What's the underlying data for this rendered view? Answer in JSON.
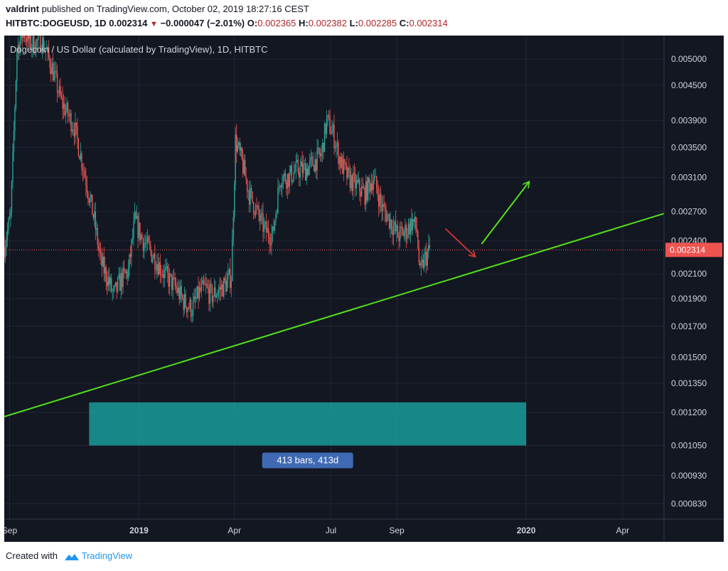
{
  "header": {
    "author": "valdrint",
    "published_text": "published on TradingView.com, October 02, 2019 18:27:16 CEST",
    "symbol": "HITBTC:DOGEUSD, 1D",
    "price": "0.002314",
    "change_arrow": "▼",
    "change": "−0.000047 (−2.01%)",
    "open_label": "O:",
    "open": "0.002365",
    "high_label": "H:",
    "high": "0.002382",
    "low_label": "L:",
    "low": "0.002285",
    "close_label": "C:",
    "close": "0.002314"
  },
  "chart_data": {
    "type": "candlestick",
    "title": "Dogecoin / US Dollar (calculated by TradingView), 1D, HITBTC",
    "y_scale": "log",
    "ylim": [
      0.00078,
      0.0055
    ],
    "y_ticks": [
      "0.005000",
      "0.004500",
      "0.003900",
      "0.003500",
      "0.003100",
      "0.002700",
      "0.002400",
      "0.002100",
      "0.001900",
      "0.001700",
      "0.001500",
      "0.001350",
      "0.001200",
      "0.001050",
      "0.000930",
      "0.000830"
    ],
    "x_ticks": [
      {
        "label": "Sep",
        "date": "2018-09-01",
        "bold": false
      },
      {
        "label": "2019",
        "date": "2019-01-01",
        "bold": true
      },
      {
        "label": "Apr",
        "date": "2019-04-01",
        "bold": false
      },
      {
        "label": "Jul",
        "date": "2019-07-01",
        "bold": false
      },
      {
        "label": "Sep",
        "date": "2019-09-01",
        "bold": false
      },
      {
        "label": "2020",
        "date": "2020-01-01",
        "bold": true
      },
      {
        "label": "Apr",
        "date": "2020-04-01",
        "bold": false
      }
    ],
    "xlim": [
      "2018-08-27",
      "2020-05-10"
    ],
    "price_path": [
      [
        "2018-08-27",
        0.00235
      ],
      [
        "2018-09-02",
        0.00265
      ],
      [
        "2018-09-08",
        0.0052
      ],
      [
        "2018-09-14",
        0.0056
      ],
      [
        "2018-09-22",
        0.0053
      ],
      [
        "2018-10-01",
        0.0054
      ],
      [
        "2018-10-10",
        0.0049
      ],
      [
        "2018-10-20",
        0.0042
      ],
      [
        "2018-11-01",
        0.0038
      ],
      [
        "2018-11-10",
        0.0032
      ],
      [
        "2018-11-20",
        0.0026
      ],
      [
        "2018-11-26",
        0.0022
      ],
      [
        "2018-12-03",
        0.00205
      ],
      [
        "2018-12-08",
        0.00192
      ],
      [
        "2018-12-15",
        0.00205
      ],
      [
        "2018-12-22",
        0.00212
      ],
      [
        "2018-12-28",
        0.0026
      ],
      [
        "2019-01-05",
        0.0024
      ],
      [
        "2019-01-15",
        0.00225
      ],
      [
        "2019-01-25",
        0.0021
      ],
      [
        "2019-02-05",
        0.00198
      ],
      [
        "2019-02-12",
        0.00188
      ],
      [
        "2019-02-20",
        0.00182
      ],
      [
        "2019-02-27",
        0.00195
      ],
      [
        "2019-03-05",
        0.00198
      ],
      [
        "2019-03-10",
        0.00192
      ],
      [
        "2019-03-18",
        0.00197
      ],
      [
        "2019-03-24",
        0.00202
      ],
      [
        "2019-03-29",
        0.00208
      ],
      [
        "2019-04-02",
        0.0036
      ],
      [
        "2019-04-08",
        0.0033
      ],
      [
        "2019-04-15",
        0.0029
      ],
      [
        "2019-04-22",
        0.0027
      ],
      [
        "2019-04-30",
        0.0025
      ],
      [
        "2019-05-07",
        0.00245
      ],
      [
        "2019-05-14",
        0.0031
      ],
      [
        "2019-05-22",
        0.0031
      ],
      [
        "2019-05-30",
        0.0032
      ],
      [
        "2019-06-07",
        0.0032
      ],
      [
        "2019-06-15",
        0.0033
      ],
      [
        "2019-06-22",
        0.0034
      ],
      [
        "2019-06-27",
        0.0039
      ],
      [
        "2019-07-03",
        0.0037
      ],
      [
        "2019-07-10",
        0.0033
      ],
      [
        "2019-07-17",
        0.0031
      ],
      [
        "2019-07-25",
        0.003
      ],
      [
        "2019-08-02",
        0.0029
      ],
      [
        "2019-08-10",
        0.0031
      ],
      [
        "2019-08-18",
        0.00275
      ],
      [
        "2019-08-26",
        0.0026
      ],
      [
        "2019-09-02",
        0.00245
      ],
      [
        "2019-09-10",
        0.0025
      ],
      [
        "2019-09-16",
        0.0026
      ],
      [
        "2019-09-20",
        0.0025
      ],
      [
        "2019-09-23",
        0.00208
      ],
      [
        "2019-09-26",
        0.0022
      ],
      [
        "2019-10-02",
        0.002314
      ]
    ],
    "current_price": {
      "label": "0.002314",
      "value": 0.002314
    },
    "trendline": {
      "start": [
        "2018-08-27",
        0.00118
      ],
      "end": [
        "2020-05-10",
        0.00268
      ],
      "color": "#54e01a"
    },
    "date_range_box": {
      "start": "2018-11-15",
      "end": "2020-01-01",
      "top": 0.00125,
      "bottom": 0.00105,
      "label": "413 bars, 413d",
      "color": "#1bb3b0"
    },
    "red_arrow": {
      "from": [
        "2019-10-17",
        0.00252
      ],
      "to": [
        "2019-11-14",
        0.00225
      ],
      "color": "#e53935"
    },
    "green_arrow": {
      "from": [
        "2019-11-20",
        0.00237
      ],
      "to": [
        "2020-01-04",
        0.00305
      ],
      "color": "#54e01a"
    },
    "colors": {
      "background": "#131722",
      "up": "#26a69a",
      "down": "#ef5350",
      "grid": "#232733",
      "axis_text": "#d1d4dc",
      "price_tag": "#ef5350"
    }
  },
  "footer": {
    "created_with": "Created with",
    "brand": "TradingView"
  }
}
